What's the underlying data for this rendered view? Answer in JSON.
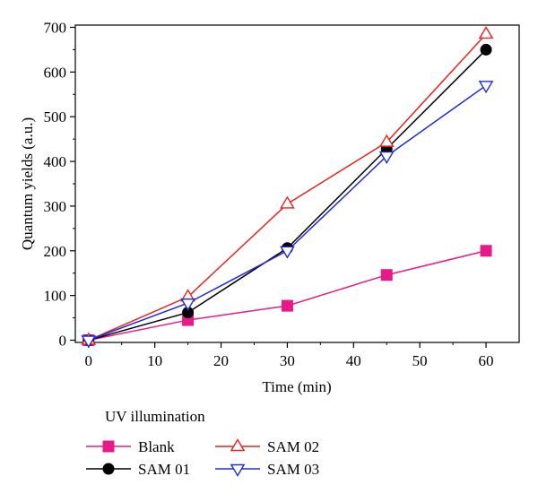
{
  "chart_data": {
    "type": "line",
    "xlabel": "Time (min)",
    "ylabel": "Quantum yields (a.u.)",
    "xlim": [
      -2,
      65
    ],
    "ylim": [
      -5,
      705
    ],
    "x_ticks": [
      0,
      10,
      20,
      30,
      40,
      50,
      60
    ],
    "y_ticks": [
      0,
      100,
      200,
      300,
      400,
      500,
      600,
      700
    ],
    "grid": false,
    "legend_title": "UV illumination",
    "legend_position": "bottom",
    "x": [
      0,
      15,
      30,
      45,
      60
    ],
    "series": [
      {
        "name": "Blank",
        "values": [
          0,
          45,
          77,
          146,
          200
        ],
        "color": "#e8198b",
        "marker": "square-filled"
      },
      {
        "name": "SAM 01",
        "values": [
          0,
          62,
          206,
          428,
          650
        ],
        "color": "#000000",
        "marker": "circle-filled"
      },
      {
        "name": "SAM 02",
        "values": [
          0,
          97,
          305,
          443,
          685
        ],
        "color": "#e8221c",
        "marker": "triangle-up-open"
      },
      {
        "name": "SAM 03",
        "values": [
          0,
          83,
          200,
          412,
          570
        ],
        "color": "#1f2bd6",
        "marker": "triangle-down-open"
      }
    ]
  }
}
